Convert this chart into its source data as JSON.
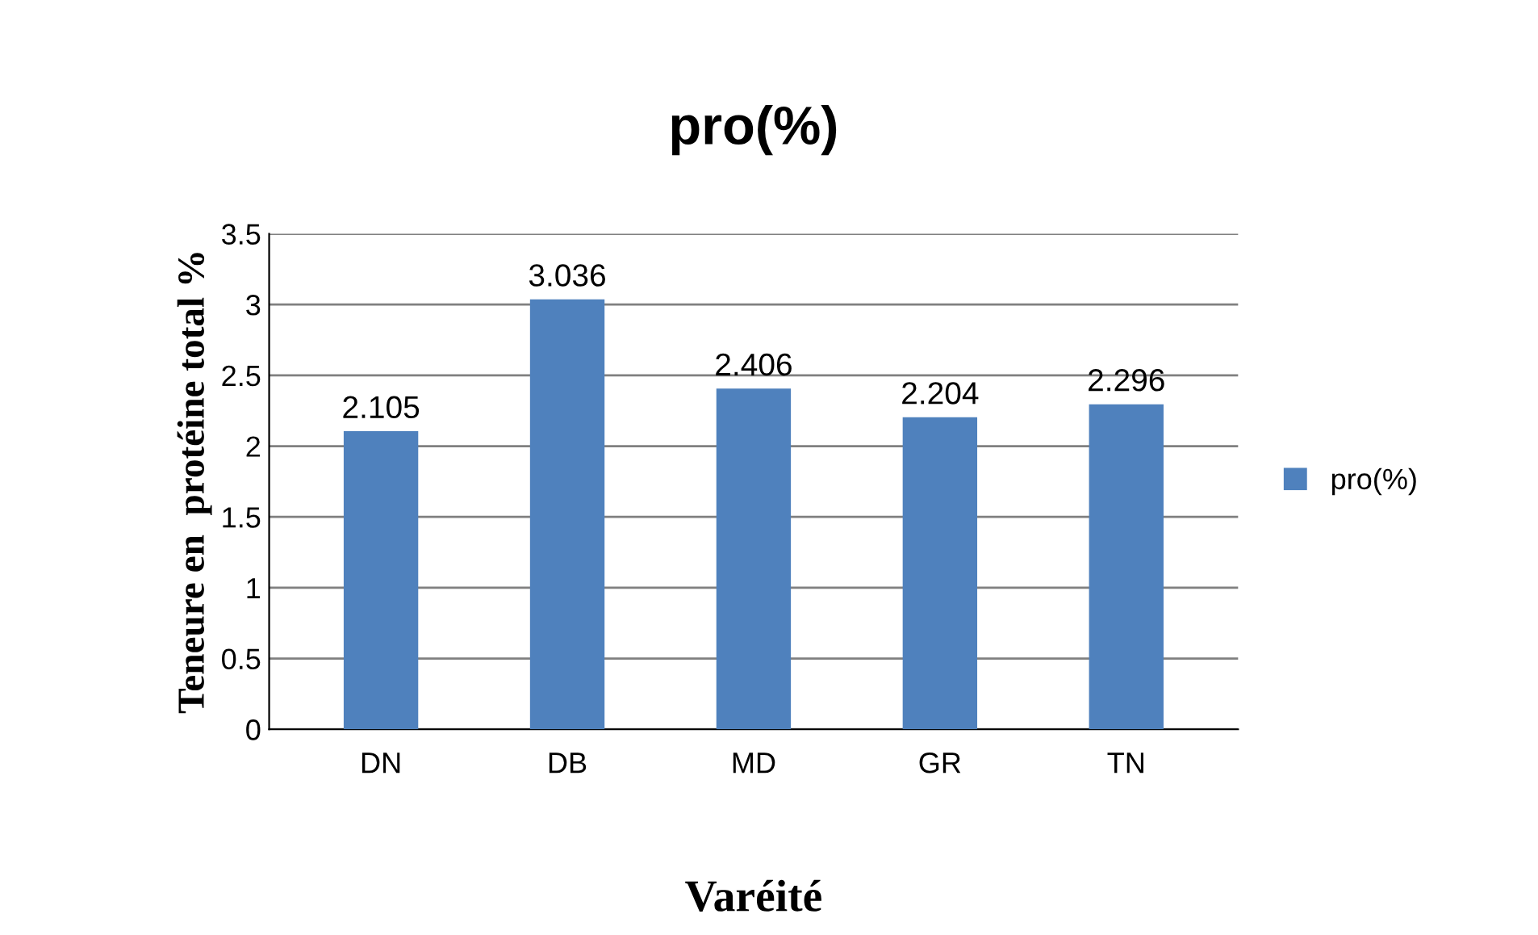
{
  "chart_data": {
    "type": "bar",
    "title": "pro(%)",
    "xlabel": "Varéité",
    "ylabel": "Teneure en  protéine total %",
    "categories": [
      "DN",
      "DB",
      "MD",
      "GR",
      "TN"
    ],
    "series": [
      {
        "name": "pro(%)",
        "color": "#4f81bd",
        "values": [
          2.105,
          3.036,
          2.406,
          2.204,
          2.296
        ]
      }
    ],
    "ylim": [
      0,
      3.5
    ],
    "yticks": [
      0,
      0.5,
      1,
      1.5,
      2,
      2.5,
      3,
      3.5
    ],
    "grid": "y",
    "legend": "right",
    "data_labels": true
  }
}
